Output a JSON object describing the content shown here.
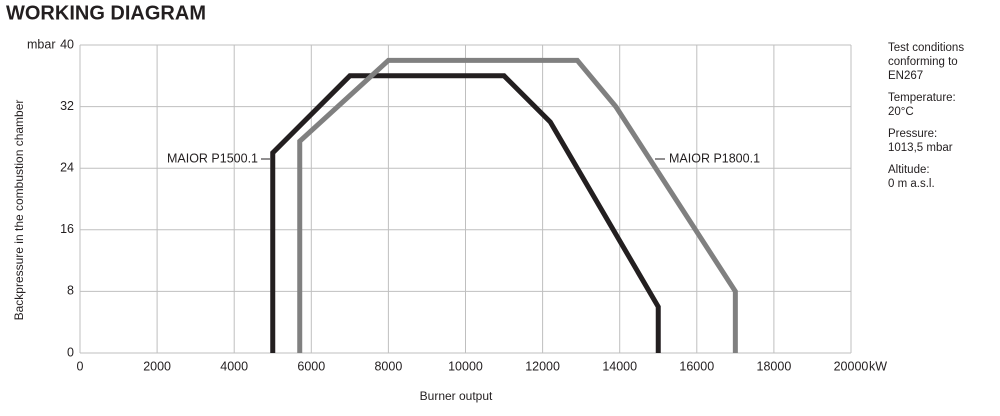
{
  "chart_data": {
    "type": "line",
    "title": "WORKING DIAGRAM",
    "y_label": "Backpressure in the combustion chamber",
    "x_label": "Burner output",
    "y_unit": "mbar",
    "x_unit": "kW",
    "xlim": [
      0,
      20000
    ],
    "xticks": [
      0,
      2000,
      4000,
      6000,
      8000,
      10000,
      12000,
      14000,
      16000,
      18000,
      20000
    ],
    "ylim": [
      0,
      40
    ],
    "yticks": [
      0,
      8,
      16,
      24,
      32,
      40
    ],
    "grid": true,
    "series": [
      {
        "name": "MAIOR P1500.1",
        "color": "#231f20",
        "x": [
          5000,
          5000,
          7000,
          11000,
          12200,
          15000,
          15000
        ],
        "values": [
          0,
          26,
          36,
          36,
          30,
          6,
          0
        ]
      },
      {
        "name": "MAIOR P1800.1",
        "color": "#808080",
        "x": [
          5700,
          5700,
          8000,
          12900,
          13900,
          17000,
          17000
        ],
        "values": [
          0,
          27.5,
          38,
          38,
          32,
          8,
          0
        ]
      }
    ],
    "notes": [
      [
        "Test conditions",
        "conforming to",
        "EN267"
      ],
      [
        "Temperature:",
        "20°C"
      ],
      [
        "Pressure:",
        "1013,5 mbar"
      ],
      [
        "Altitude:",
        "0 m a.s.l."
      ]
    ]
  }
}
